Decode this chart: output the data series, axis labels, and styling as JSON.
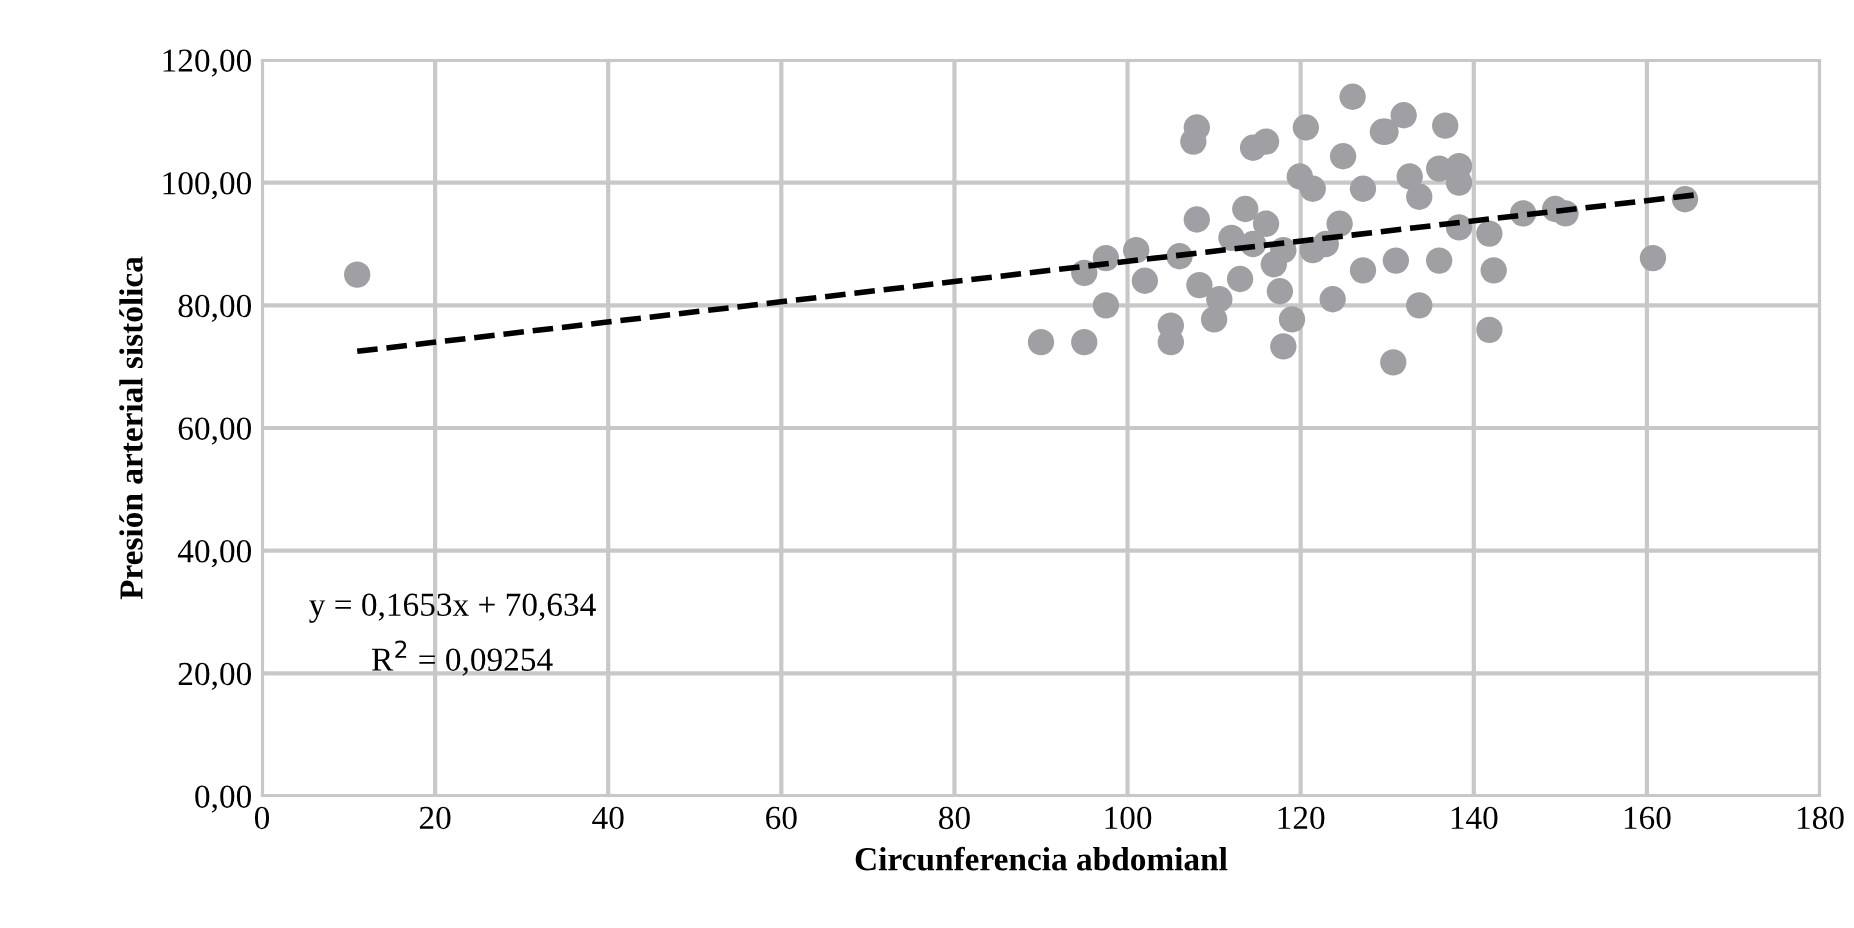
{
  "chart_data": {
    "type": "scatter",
    "xlabel": "Circunferencia abdomianl",
    "ylabel": "Presión arterial sistólica",
    "xlim": [
      0,
      180
    ],
    "xticks": [
      0,
      20,
      40,
      60,
      80,
      100,
      120,
      140,
      160,
      180
    ],
    "ylim": [
      0,
      120
    ],
    "yticks": [
      {
        "value": 0,
        "label": "0,00"
      },
      {
        "value": 20,
        "label": "20,00"
      },
      {
        "value": 40,
        "label": "40,00"
      },
      {
        "value": 60,
        "label": "60,00"
      },
      {
        "value": 80,
        "label": "80,00"
      },
      {
        "value": 100,
        "label": "100,00"
      },
      {
        "value": 120,
        "label": "120,00"
      }
    ],
    "grid": true,
    "legend": false,
    "marker": "circle",
    "annotations": [
      "y = 0,1653x + 70,634",
      "R$^{2}$ = 0,09254"
    ],
    "series": [
      {
        "color": "#a0a0a4",
        "x": [
          11,
          90,
          95,
          95,
          97.5,
          97.5,
          101,
          102,
          105,
          105,
          106,
          107.6,
          108,
          108,
          108.3,
          110,
          110.6,
          112,
          113.6,
          114.5,
          116,
          116.9,
          117.6,
          118,
          119,
          119.9,
          120.6,
          121.4,
          122.9,
          123.7,
          124.5,
          124.9,
          126,
          127.2,
          127.2,
          129.5,
          130.7,
          116,
          118,
          113,
          121.4,
          114.5,
          131.9,
          129.8,
          136.7,
          132.6,
          136,
          138.3,
          138.3,
          133.7,
          131,
          136,
          138.3,
          141.8,
          142.3,
          145.7,
          149.4,
          150.6,
          133.7,
          141.8,
          160.7,
          164.4
        ],
        "values": [
          85,
          74,
          74,
          85.3,
          87.7,
          80,
          89,
          84,
          76.7,
          74,
          88,
          106.7,
          109,
          94,
          83.3,
          77.7,
          81,
          91,
          95.7,
          105.7,
          106.7,
          86.7,
          82.3,
          73.3,
          77.7,
          101,
          109,
          99,
          90,
          81,
          93.3,
          104.3,
          114,
          99,
          85.7,
          108.3,
          70.7,
          93.3,
          89,
          84.3,
          89,
          90,
          111,
          108.3,
          109.3,
          101,
          102.3,
          102.7,
          100,
          97.7,
          87.3,
          87.3,
          92.7,
          91.7,
          85.7,
          95,
          95.7,
          95,
          80,
          76,
          87.7,
          97.3
        ]
      },
      {
        "type": "line",
        "color": "#000000",
        "line_style": "dashed",
        "marker": "none",
        "x": [
          11,
          165.6
        ],
        "values": [
          72.5,
          98.0
        ]
      }
    ]
  }
}
